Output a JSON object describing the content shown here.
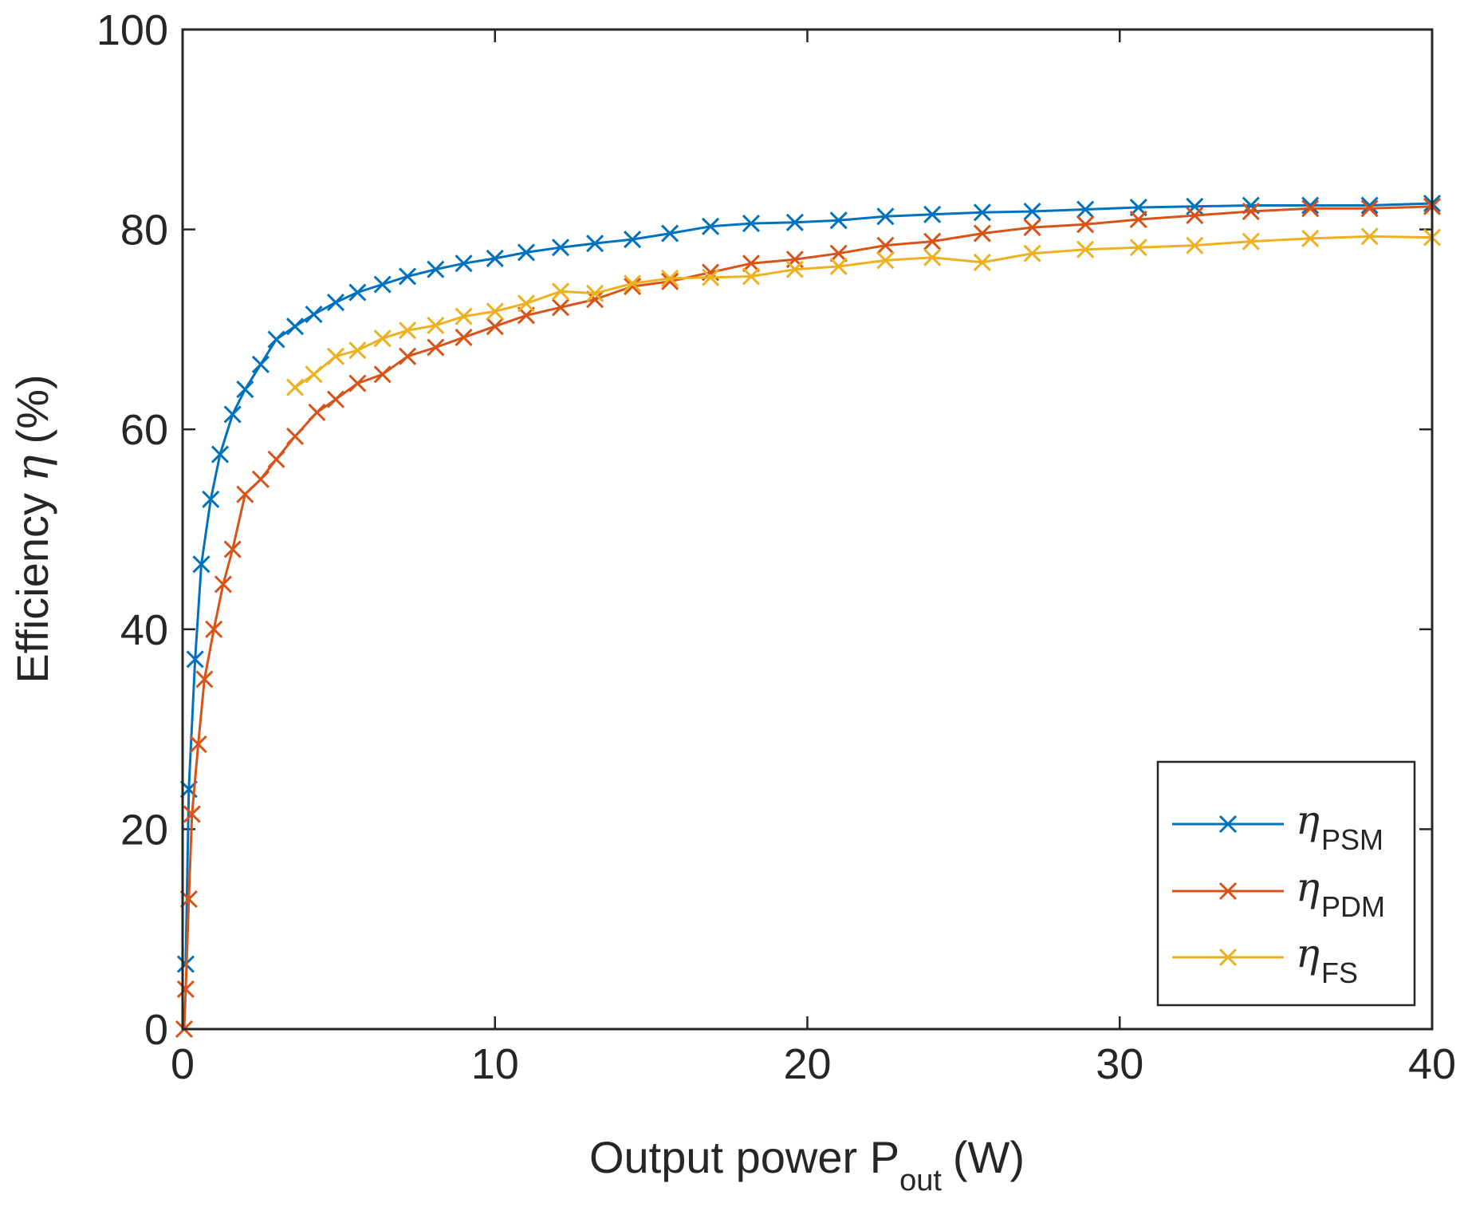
{
  "chart_data": {
    "type": "line",
    "title": "",
    "xlabel": {
      "main": "Output power P",
      "sub": "out",
      "unit": "(W)"
    },
    "ylabel": {
      "main": "Efficiency",
      "symbol": "η",
      "unit": "(%)"
    },
    "xlim": [
      0,
      40
    ],
    "ylim": [
      0,
      100
    ],
    "xticks": [
      "0",
      "10",
      "20",
      "30",
      "40"
    ],
    "yticks": [
      "0",
      "20",
      "40",
      "60",
      "80",
      "100"
    ],
    "grid": false,
    "legend_position": "bottom-right",
    "series": [
      {
        "name": "PSM",
        "symbol": "η",
        "sub": "PSM",
        "color": "#0072BD",
        "marker": "x",
        "x": [
          0.1,
          0.2,
          0.4,
          0.6,
          0.9,
          1.2,
          1.6,
          2.0,
          2.5,
          3.0,
          3.6,
          4.2,
          4.9,
          5.6,
          6.4,
          7.2,
          8.1,
          9.0,
          10.0,
          11.0,
          12.1,
          13.2,
          14.4,
          15.6,
          16.9,
          18.2,
          19.6,
          21.0,
          22.5,
          24.0,
          25.6,
          27.2,
          28.9,
          30.6,
          32.4,
          34.2,
          36.1,
          38.0,
          40.0
        ],
        "y": [
          6.5,
          24,
          37,
          46.5,
          53,
          57.5,
          61.5,
          64,
          66.5,
          69,
          70.3,
          71.5,
          72.7,
          73.7,
          74.5,
          75.3,
          76,
          76.6,
          77.1,
          77.7,
          78.2,
          78.6,
          79,
          79.6,
          80.3,
          80.6,
          80.7,
          80.9,
          81.3,
          81.5,
          81.7,
          81.8,
          82,
          82.2,
          82.3,
          82.4,
          82.4,
          82.4,
          82.6
        ]
      },
      {
        "name": "PDM",
        "symbol": "η",
        "sub": "PDM",
        "color": "#D95319",
        "marker": "x",
        "x": [
          0.05,
          0.1,
          0.2,
          0.3,
          0.5,
          0.7,
          1.0,
          1.3,
          1.6,
          2.0,
          2.5,
          3.0,
          3.6,
          4.3,
          4.9,
          5.6,
          6.4,
          7.2,
          8.1,
          9.0,
          10.0,
          11.0,
          12.1,
          13.2,
          14.4,
          15.6,
          16.9,
          18.2,
          19.6,
          21.0,
          22.5,
          24.0,
          25.6,
          27.2,
          28.9,
          30.6,
          32.4,
          34.2,
          36.1,
          38.0,
          40.0
        ],
        "y": [
          0,
          4,
          13,
          21.5,
          28.5,
          35,
          40,
          44.5,
          48,
          53.5,
          55,
          57,
          59.3,
          61.7,
          63,
          64.6,
          65.5,
          67.3,
          68.2,
          69.2,
          70.3,
          71.4,
          72.2,
          73,
          74.3,
          74.8,
          75.7,
          76.6,
          77,
          77.6,
          78.4,
          78.8,
          79.6,
          80.2,
          80.5,
          81,
          81.4,
          81.8,
          82.1,
          82.1,
          82.3
        ]
      },
      {
        "name": "FS",
        "symbol": "η",
        "sub": "FS",
        "color": "#EDB120",
        "marker": "x",
        "x": [
          3.6,
          4.2,
          4.9,
          5.6,
          6.4,
          7.2,
          8.1,
          9.0,
          10.0,
          11.0,
          12.1,
          13.2,
          14.4,
          15.6,
          16.9,
          18.2,
          19.6,
          21.0,
          22.5,
          24.0,
          25.6,
          27.2,
          28.9,
          30.6,
          32.4,
          34.2,
          36.1,
          38.0,
          40.0
        ],
        "y": [
          64.2,
          65.5,
          67.3,
          67.9,
          69.1,
          69.9,
          70.4,
          71.3,
          71.8,
          72.6,
          73.8,
          73.6,
          74.6,
          75.1,
          75.2,
          75.3,
          76,
          76.3,
          76.9,
          77.2,
          76.7,
          77.6,
          78,
          78.2,
          78.4,
          78.8,
          79.1,
          79.3,
          79.2
        ]
      }
    ]
  }
}
